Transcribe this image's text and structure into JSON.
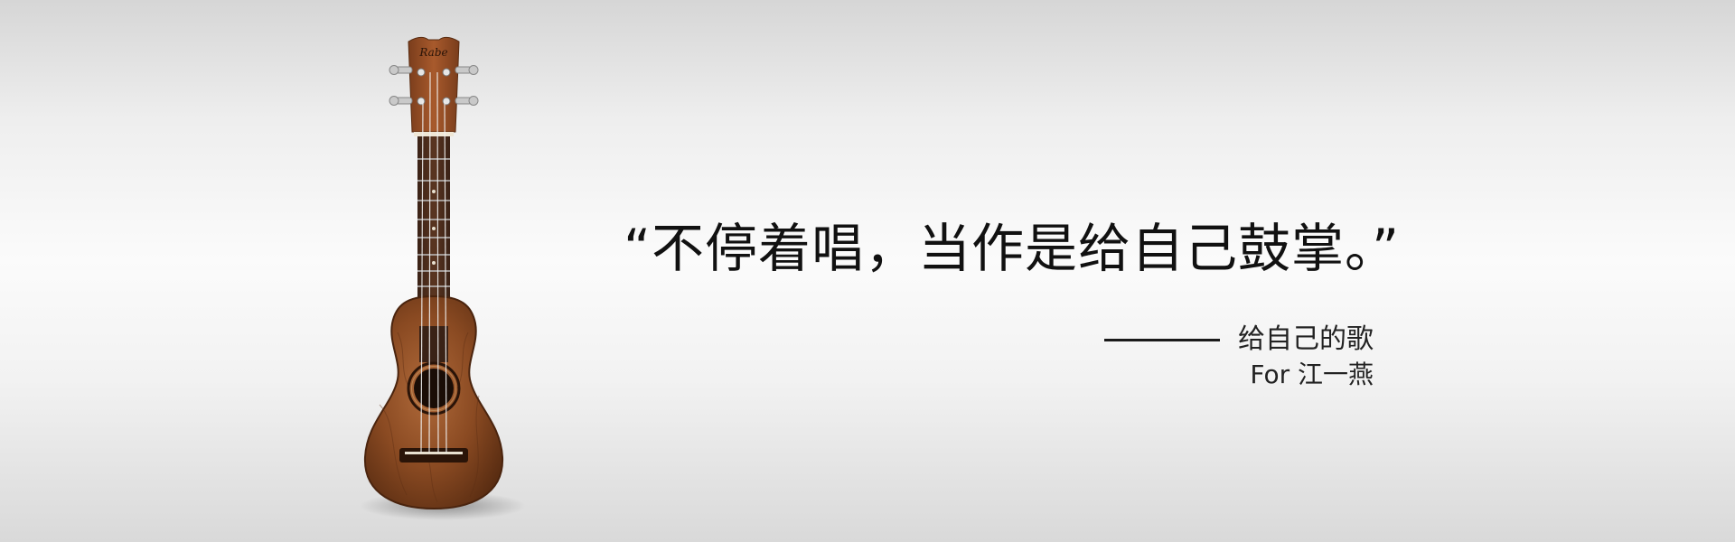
{
  "banner": {
    "quote": "“不停着唱，当作是给自己鼓掌。”",
    "song_title": "给自己的歌",
    "dedication": "For 江一燕",
    "logo_text": "Rabe",
    "image_subject": "ukulele-icon",
    "colors": {
      "background_light": "#fbfbfb",
      "background_dark": "#d6d6d6",
      "wood": "#8a4a22",
      "text": "#111111"
    }
  }
}
